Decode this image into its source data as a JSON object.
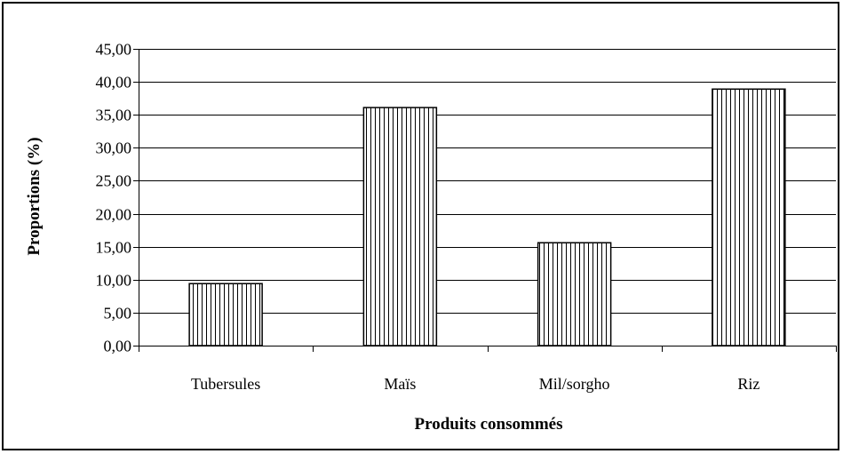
{
  "chart_data": {
    "type": "bar",
    "categories": [
      "Tubersules",
      "Maïs",
      "Mil/sorgho",
      "Riz"
    ],
    "values": [
      9.4,
      36.1,
      15.6,
      38.9
    ],
    "xlabel": "Produits consommés",
    "ylabel": "Proportions (%)",
    "ylim": [
      0,
      45
    ],
    "ytick_step": 5,
    "ytick_labels": [
      "0,00",
      "5,00",
      "10,00",
      "15,00",
      "20,00",
      "25,00",
      "30,00",
      "35,00",
      "40,00",
      "45,00"
    ],
    "grid": true,
    "legend": "none",
    "bar_fill": "vertical-hatch",
    "colors": {
      "bar_stroke": "#000000",
      "grid": "#000000",
      "background": "#ffffff"
    }
  }
}
